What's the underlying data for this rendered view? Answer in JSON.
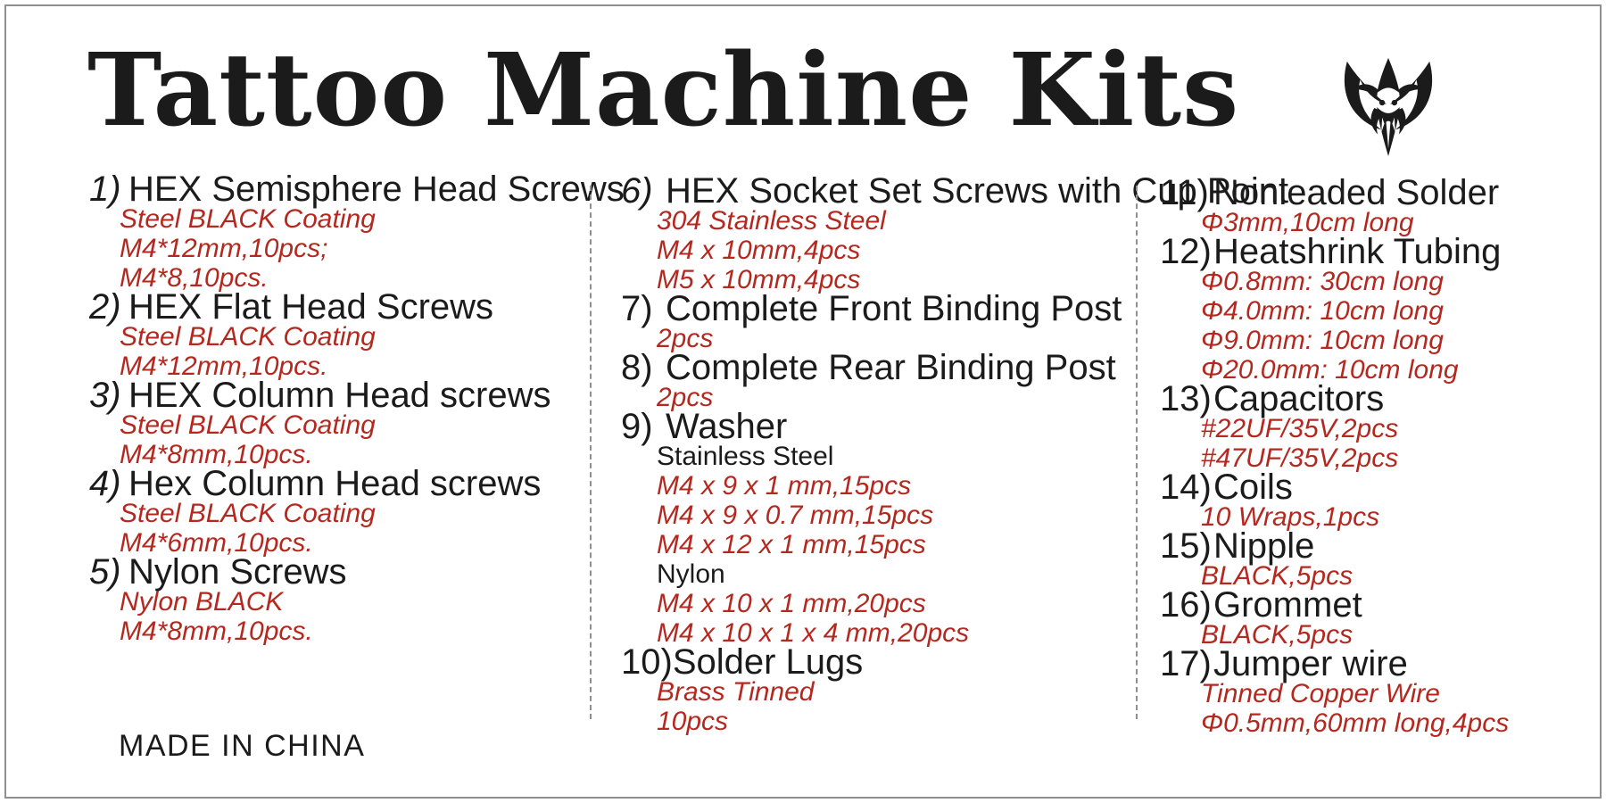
{
  "title": "Tattoo Machine Kits",
  "footer": "MADE IN CHINA",
  "logo": "tribal-spider-emblem",
  "colors": {
    "ink": "#1b1b1b",
    "red": "#b4281f",
    "divider": "#8f8f8f",
    "border": "#8f8f8f"
  },
  "columns": [
    {
      "items": [
        {
          "num": "1)",
          "num_italic": true,
          "title": "HEX Semisphere Head Screws",
          "lines": [
            {
              "style": "red",
              "text": "Steel BLACK Coating"
            },
            {
              "style": "red",
              "text": "M4*12mm,10pcs;"
            },
            {
              "style": "red",
              "text": "M4*8,10pcs."
            }
          ]
        },
        {
          "num": "2)",
          "num_italic": true,
          "title": "HEX Flat Head Screws",
          "lines": [
            {
              "style": "red",
              "text": "Steel BLACK Coating"
            },
            {
              "style": "red",
              "text": "M4*12mm,10pcs."
            }
          ]
        },
        {
          "num": "3)",
          "num_italic": true,
          "title": "HEX Column Head screws",
          "lines": [
            {
              "style": "red",
              "text": "Steel BLACK Coating"
            },
            {
              "style": "red",
              "text": "M4*8mm,10pcs."
            }
          ]
        },
        {
          "num": "4)",
          "num_italic": true,
          "title": "Hex Column Head screws",
          "lines": [
            {
              "style": "red",
              "text": "Steel BLACK Coating"
            },
            {
              "style": "red",
              "text": "M4*6mm,10pcs."
            }
          ]
        },
        {
          "num": "5)",
          "num_italic": true,
          "title": "Nylon Screws",
          "lines": [
            {
              "style": "red",
              "text": "Nylon BLACK"
            },
            {
              "style": "red",
              "text": "M4*8mm,10pcs."
            }
          ]
        }
      ]
    },
    {
      "items": [
        {
          "num": "6)",
          "num_italic": true,
          "title": "HEX Socket Set Screws with Cup Point",
          "lines": [
            {
              "style": "red",
              "text": "304 Stainless Steel"
            },
            {
              "style": "red",
              "text": "M4 x 10mm,4pcs"
            },
            {
              "style": "red",
              "text": "M5 x 10mm,4pcs"
            }
          ]
        },
        {
          "num": "7)",
          "num_italic": false,
          "title": "Complete Front Binding Post",
          "lines": [
            {
              "style": "red",
              "text": "2pcs"
            }
          ]
        },
        {
          "num": "8)",
          "num_italic": false,
          "title": "Complete Rear Binding Post",
          "lines": [
            {
              "style": "red",
              "text": "2pcs"
            }
          ]
        },
        {
          "num": "9)",
          "num_italic": false,
          "title": "Washer",
          "lines": [
            {
              "style": "black",
              "text": "Stainless Steel"
            },
            {
              "style": "red",
              "text": "M4 x 9 x 1 mm,15pcs"
            },
            {
              "style": "red",
              "text": "M4 x 9 x 0.7 mm,15pcs"
            },
            {
              "style": "red",
              "text": "M4 x 12 x 1 mm,15pcs"
            },
            {
              "style": "black",
              "text": "Nylon"
            },
            {
              "style": "red",
              "text": "M4 x 10 x 1 mm,20pcs"
            },
            {
              "style": "red",
              "text": "M4 x 10 x 1 x 4 mm,20pcs"
            }
          ]
        },
        {
          "num": "10)",
          "num_italic": false,
          "title": "Solder Lugs",
          "lines": [
            {
              "style": "red",
              "text": "Brass Tinned"
            },
            {
              "style": "red",
              "text": "10pcs"
            }
          ]
        }
      ]
    },
    {
      "items": [
        {
          "num": "11)",
          "num_italic": false,
          "title": "Nonleaded Solder",
          "lines": [
            {
              "style": "red",
              "text": "Φ3mm,10cm long"
            }
          ]
        },
        {
          "num": "12)",
          "num_italic": false,
          "title": "Heatshrink Tubing",
          "lines": [
            {
              "style": "red",
              "text": "Φ0.8mm: 30cm long"
            },
            {
              "style": "red",
              "text": "Φ4.0mm: 10cm long"
            },
            {
              "style": "red",
              "text": "Φ9.0mm: 10cm long"
            },
            {
              "style": "red",
              "text": "Φ20.0mm: 10cm long"
            }
          ]
        },
        {
          "num": "13)",
          "num_italic": false,
          "title": "Capacitors",
          "lines": [
            {
              "style": "red",
              "text": "#22UF/35V,2pcs"
            },
            {
              "style": "red",
              "text": "#47UF/35V,2pcs"
            }
          ]
        },
        {
          "num": "14)",
          "num_italic": false,
          "title": "Coils",
          "lines": [
            {
              "style": "red",
              "text": "10 Wraps,1pcs"
            }
          ]
        },
        {
          "num": "15)",
          "num_italic": false,
          "title": "Nipple",
          "lines": [
            {
              "style": "red",
              "text": "BLACK,5pcs"
            }
          ]
        },
        {
          "num": "16)",
          "num_italic": false,
          "title": "Grommet",
          "lines": [
            {
              "style": "red",
              "text": "BLACK,5pcs"
            }
          ]
        },
        {
          "num": "17)",
          "num_italic": false,
          "title": "Jumper wire",
          "lines": [
            {
              "style": "red",
              "text": "Tinned Copper Wire"
            },
            {
              "style": "red",
              "text": "Φ0.5mm,60mm long,4pcs"
            }
          ]
        }
      ]
    }
  ]
}
